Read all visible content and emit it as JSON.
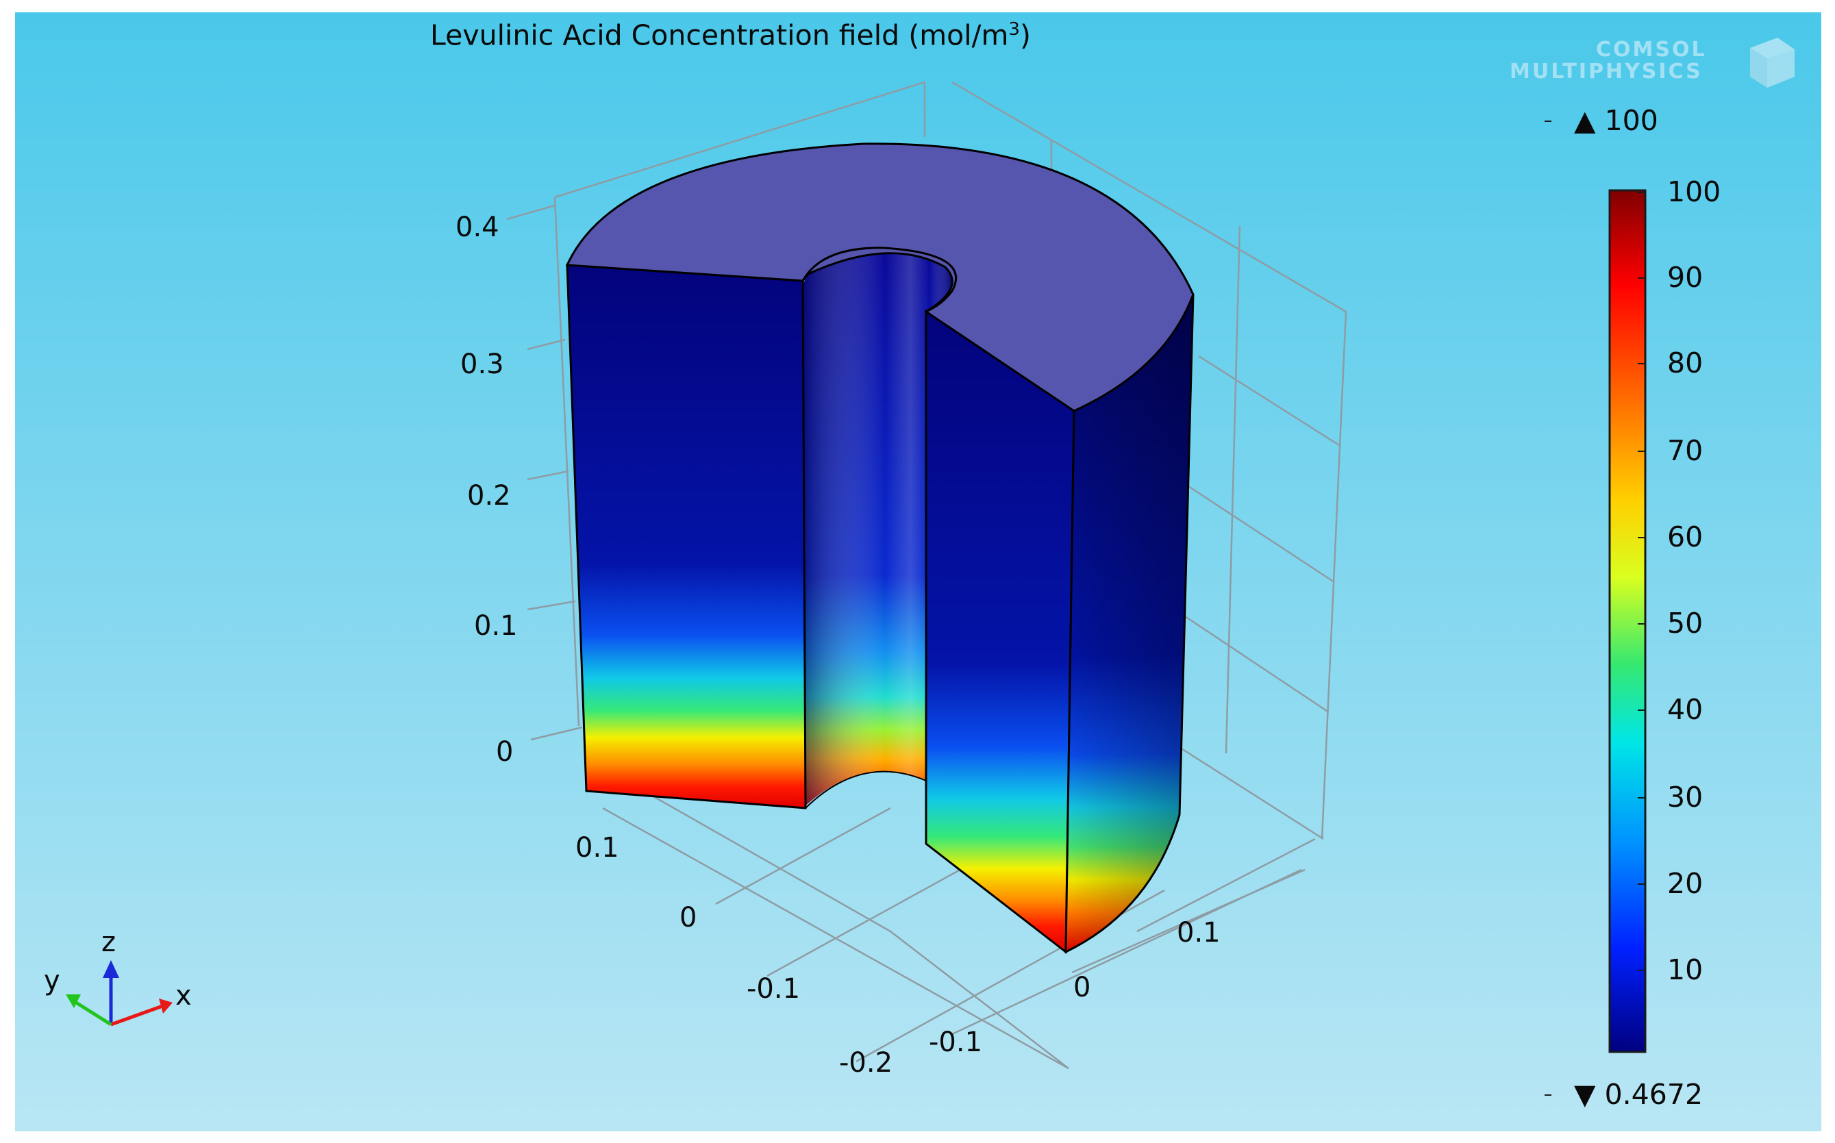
{
  "plot": {
    "title": "Levulinic Acid Concentration field (mol/m",
    "title_unit_superscript": "3",
    "title_suffix": ")",
    "z_ticks": [
      "0.4",
      "0.3",
      "0.2",
      "0.1",
      "0"
    ],
    "y_ticks": [
      "0.1",
      "0",
      "-0.1",
      "-0.2"
    ],
    "x_ticks": [
      "-0.1",
      "0",
      "0.1"
    ]
  },
  "colorbar": {
    "max_marker": "▲ 100",
    "min_marker": "▼ 0.4672",
    "ticks": [
      "100",
      "90",
      "80",
      "70",
      "60",
      "50",
      "40",
      "30",
      "20",
      "10"
    ]
  },
  "axis_triad": {
    "z": "z",
    "y": "y",
    "x": "x"
  },
  "logo": {
    "line1": "COMSOL",
    "line2": "MULTIPHYSICS"
  },
  "colors": {
    "background_top": "#4ac8ea",
    "background_bottom": "#b9e6f4",
    "top_face": "#5656ae",
    "jet_dark_blue": "#00008f",
    "jet_red": "#800000"
  }
}
